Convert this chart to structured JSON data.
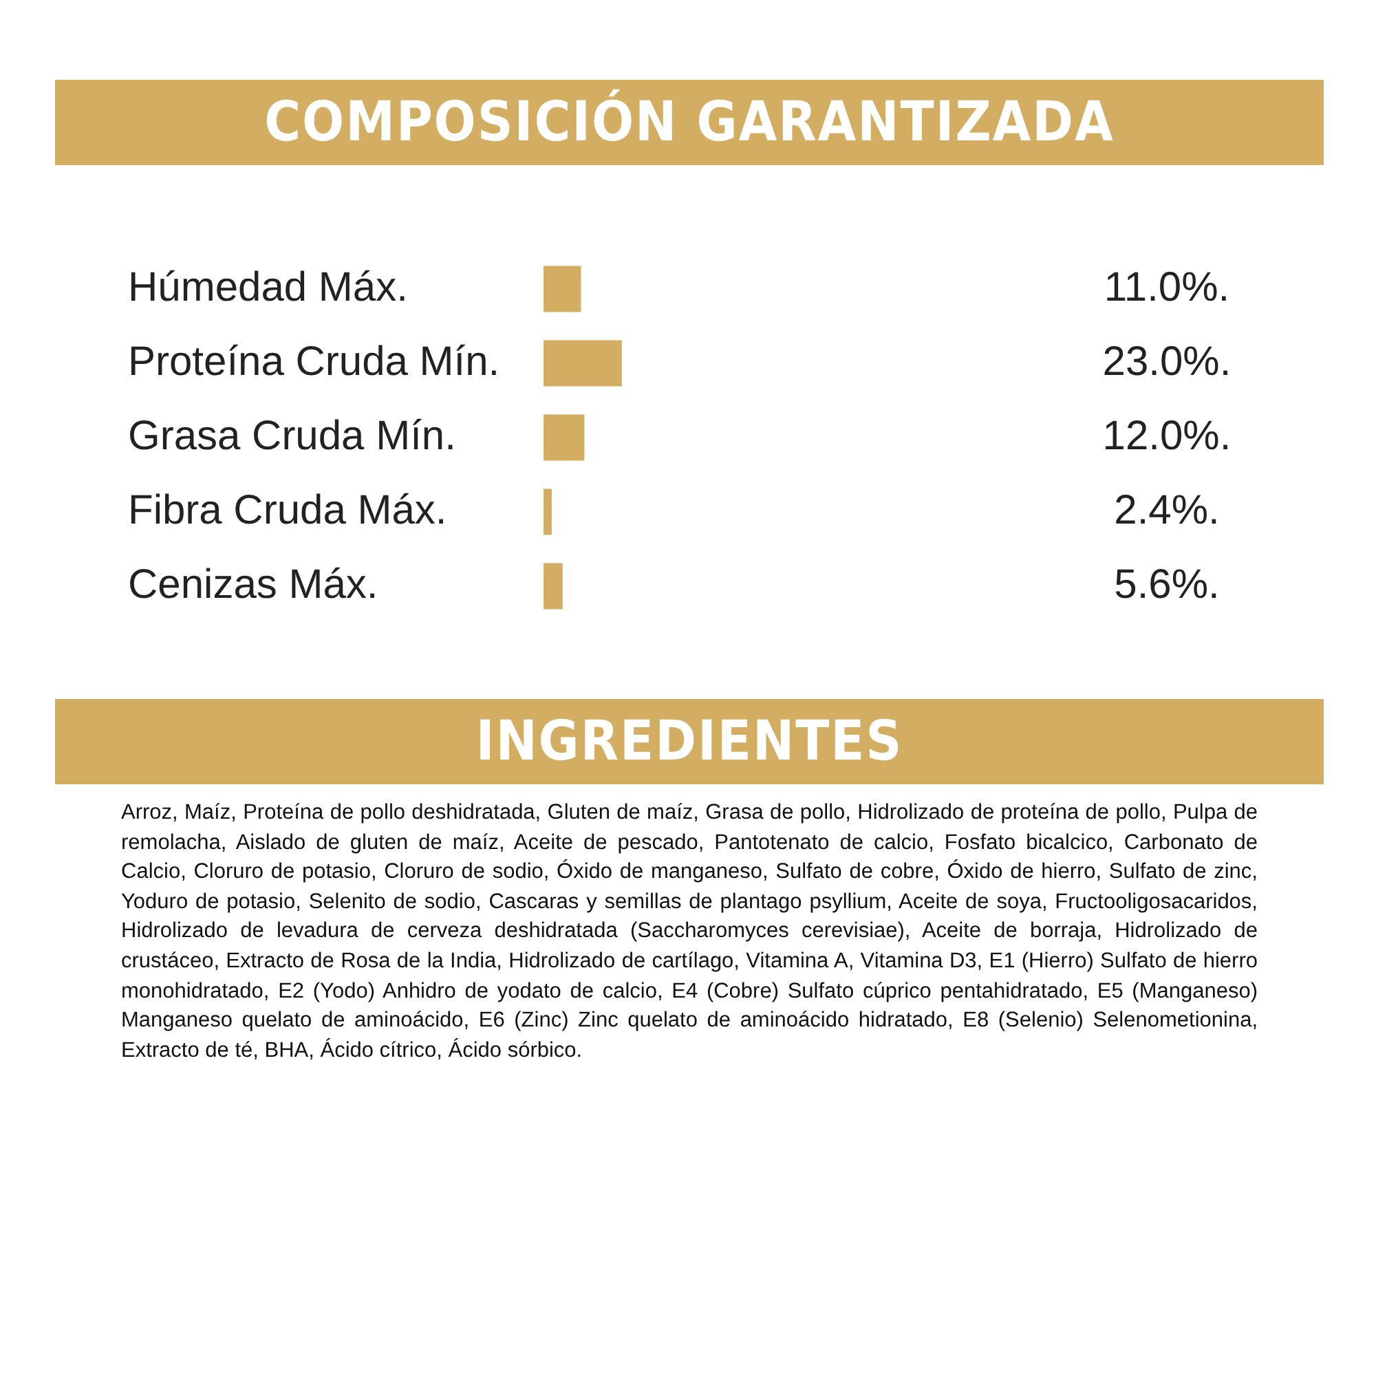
{
  "chart_data": {
    "type": "bar",
    "orientation": "horizontal",
    "title": "COMPOSICIÓN GARANTIZADA",
    "categories": [
      "Húmedad Máx.",
      "Proteína Cruda Mín.",
      "Grasa Cruda Mín.",
      "Fibra Cruda Máx.",
      "Cenizas Máx."
    ],
    "values": [
      11.0,
      23.0,
      12.0,
      2.4,
      5.6
    ],
    "value_labels": [
      "11.0%.",
      "23.0%.",
      "12.0%.",
      "2.4%.",
      "5.6%."
    ],
    "color": "#d3ad62",
    "annotations": [
      "INGREDIENTES",
      "Arroz, Maíz, Proteína de pollo deshidratada, Gluten de maíz, Grasa de pollo, Hidrolizado de proteína de pollo, Pulpa de remolacha, Aislado de gluten de maíz, Aceite de pescado, Pantotenato de calcio, Fosfato bicalcico, Carbonato de Calcio, Cloruro de potasio, Cloruro de sodio, Óxido de manganeso, Sulfato de cobre, Óxido de hierro, Sulfato de zinc, Yoduro de potasio, Selenito de sodio, Cascaras y semillas de plantago psyllium, Aceite de soya, Fructooligosacaridos, Hidrolizado de levadura de cerveza deshidratada (Saccharomyces cerevisiae), Aceite de borraja, Hidrolizado de crustáceo, Extracto de Rosa de la India, Hidrolizado de cartílago, Vitamina A, Vitamina D3, E1 (Hierro) Sulfato de hierro monohidratado, E2 (Yodo) Anhidro de yodato de calcio, E4 (Cobre) Sulfato cúprico pentahidratado, E5 (Manganeso) Manganeso quelato de aminoácido, E6 (Zinc) Zinc quelato de aminoácido hidratado, E8 (Selenio) Selenometionina, Extracto de té, BHA, Ácido cítrico, Ácido sórbico."
    ]
  }
}
